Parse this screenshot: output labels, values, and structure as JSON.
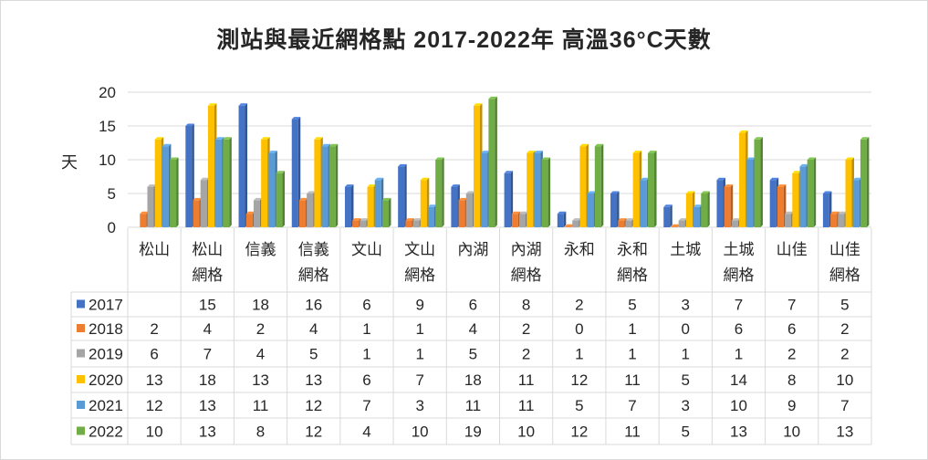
{
  "chart_data": {
    "type": "bar",
    "title": "測站與最近網格點 2017-2022年 高溫36°C天數",
    "ylabel": "天",
    "xlabel": "",
    "ylim": [
      0,
      20
    ],
    "yticks": [
      0,
      5,
      10,
      15,
      20
    ],
    "grid": true,
    "legend": "data-table-left",
    "categories": [
      [
        "松山"
      ],
      [
        "松山",
        "網格"
      ],
      [
        "信義"
      ],
      [
        "信義",
        "網格"
      ],
      [
        "文山"
      ],
      [
        "文山",
        "網格"
      ],
      [
        "內湖"
      ],
      [
        "內湖",
        "網格"
      ],
      [
        "永和"
      ],
      [
        "永和",
        "網格"
      ],
      [
        "土城"
      ],
      [
        "土城",
        "網格"
      ],
      [
        "山佳"
      ],
      [
        "山佳",
        "網格"
      ]
    ],
    "series": [
      {
        "name": "2017",
        "color": "#4472C4",
        "values": [
          null,
          15,
          18,
          16,
          6,
          9,
          6,
          8,
          2,
          5,
          3,
          7,
          7,
          5
        ]
      },
      {
        "name": "2018",
        "color": "#ED7D31",
        "values": [
          2,
          4,
          2,
          4,
          1,
          1,
          4,
          2,
          0,
          1,
          0,
          6,
          6,
          2
        ]
      },
      {
        "name": "2019",
        "color": "#A5A5A5",
        "values": [
          6,
          7,
          4,
          5,
          1,
          1,
          5,
          2,
          1,
          1,
          1,
          1,
          2,
          2
        ]
      },
      {
        "name": "2020",
        "color": "#FFC000",
        "values": [
          13,
          18,
          13,
          13,
          6,
          7,
          18,
          11,
          12,
          11,
          5,
          14,
          8,
          10
        ]
      },
      {
        "name": "2021",
        "color": "#5B9BD5",
        "values": [
          12,
          13,
          11,
          12,
          7,
          3,
          11,
          11,
          5,
          7,
          3,
          10,
          9,
          7
        ]
      },
      {
        "name": "2022",
        "color": "#70AD47",
        "values": [
          10,
          13,
          8,
          12,
          4,
          10,
          19,
          10,
          12,
          11,
          5,
          13,
          10,
          13
        ]
      }
    ]
  }
}
